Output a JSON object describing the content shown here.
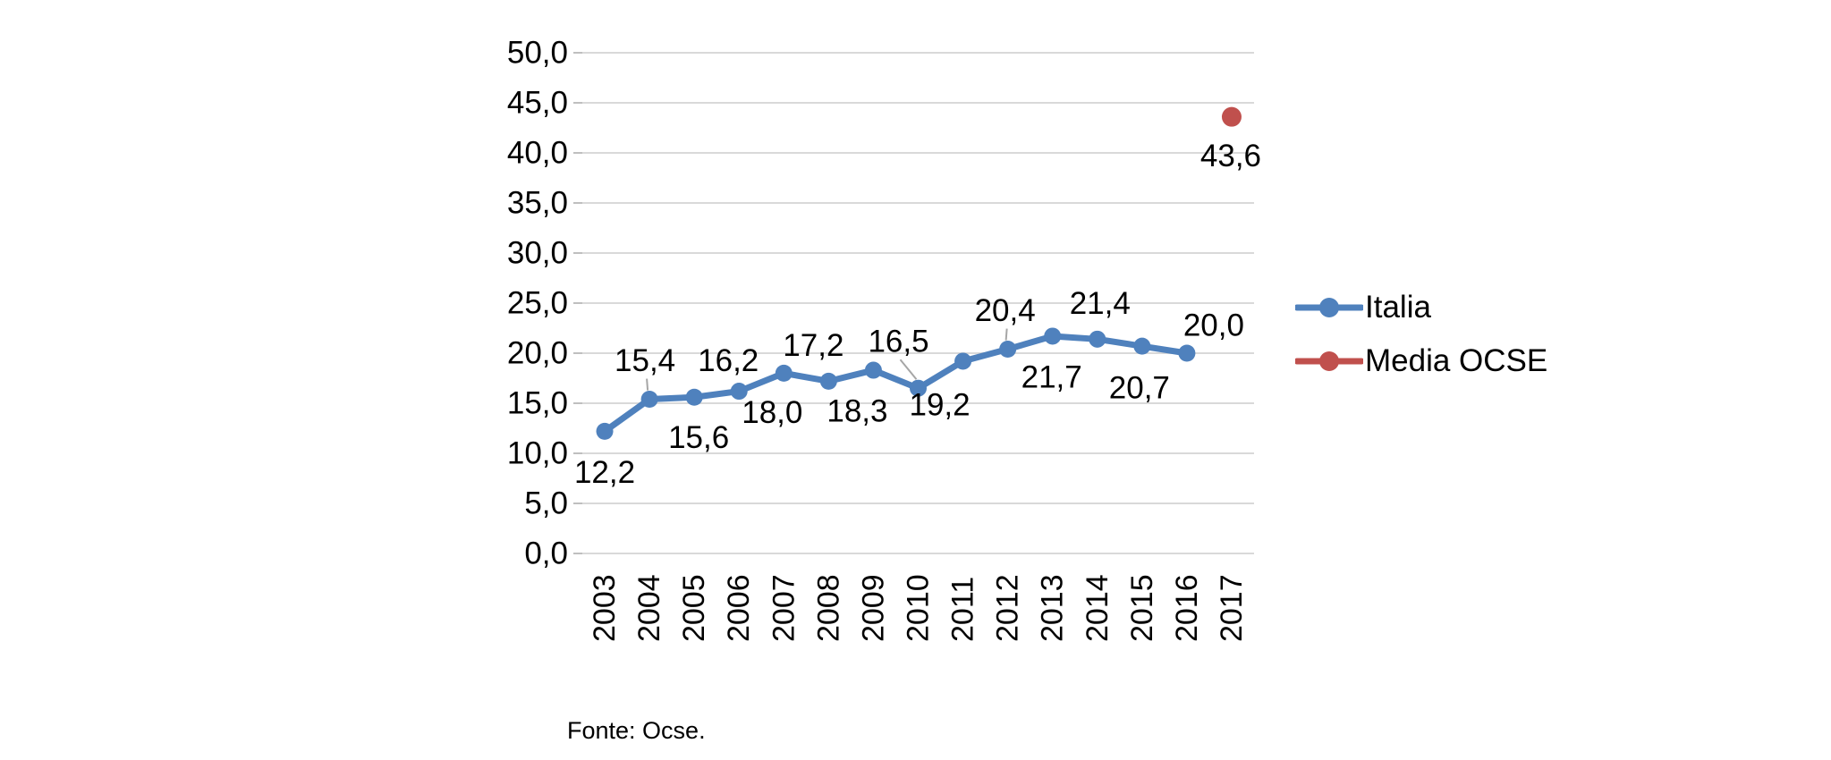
{
  "page": {
    "background": "#ffffff"
  },
  "source_note": "Fonte: Ocse.",
  "chart_data": {
    "type": "line",
    "title": "",
    "xlabel": "",
    "ylabel": "",
    "categories": [
      "2003",
      "2004",
      "2005",
      "2006",
      "2007",
      "2008",
      "2009",
      "2010",
      "2011",
      "2012",
      "2013",
      "2014",
      "2015",
      "2016",
      "2017"
    ],
    "series": [
      {
        "name": "Italia",
        "color": "#4F81BD",
        "marker": "circle",
        "x": [
          "2003",
          "2004",
          "2005",
          "2006",
          "2007",
          "2008",
          "2009",
          "2010",
          "2011",
          "2012",
          "2013",
          "2014",
          "2015",
          "2016"
        ],
        "values": [
          12.2,
          15.4,
          15.6,
          16.2,
          18.0,
          17.2,
          18.3,
          16.5,
          19.2,
          20.4,
          21.7,
          21.4,
          20.7,
          20.0
        ],
        "data_labels": [
          "12,2",
          "15,4",
          "15,6",
          "16,2",
          "18,0",
          "17,2",
          "18,3",
          "16,5",
          "19,2",
          "20,4",
          "21,7",
          "21,4",
          "20,7",
          "20,0"
        ],
        "label_placement": [
          "below",
          "above",
          "below",
          "above",
          "below",
          "above",
          "below",
          "above",
          "below",
          "above",
          "below",
          "above",
          "below",
          "above"
        ],
        "label_offsets": [
          [
            0,
            46
          ],
          [
            -5,
            -43
          ],
          [
            5,
            45
          ],
          [
            -12,
            -34
          ],
          [
            -13,
            44
          ],
          [
            -17,
            -40
          ],
          [
            -18,
            46
          ],
          [
            -22,
            -52
          ],
          [
            -26,
            49
          ],
          [
            -3,
            -43
          ],
          [
            -1,
            46
          ],
          [
            3,
            -40
          ],
          [
            -3,
            47
          ],
          [
            30,
            -31
          ]
        ],
        "leaders": [
          false,
          true,
          false,
          false,
          false,
          false,
          false,
          true,
          false,
          true,
          false,
          false,
          false,
          false
        ]
      },
      {
        "name": "Media OCSE",
        "color": "#C0504D",
        "marker": "circle",
        "x": [
          "2017"
        ],
        "values": [
          43.6
        ],
        "data_labels": [
          "43,6"
        ],
        "label_placement": [
          "below"
        ],
        "label_offsets": [
          [
            -1,
            44
          ]
        ],
        "leaders": [
          false
        ]
      }
    ],
    "ylim": [
      0,
      50
    ],
    "ytick_step": 5,
    "ytick_labels": [
      "0,0",
      "5,0",
      "10,0",
      "15,0",
      "20,0",
      "25,0",
      "30,0",
      "35,0",
      "40,0",
      "45,0",
      "50,0"
    ],
    "grid": true,
    "gridline_color": "#D9D9D9",
    "tick_color": "#BFBFBF",
    "leader_line_color": "#A6A6A6",
    "legend_position": "right",
    "decimal_separator": ","
  }
}
